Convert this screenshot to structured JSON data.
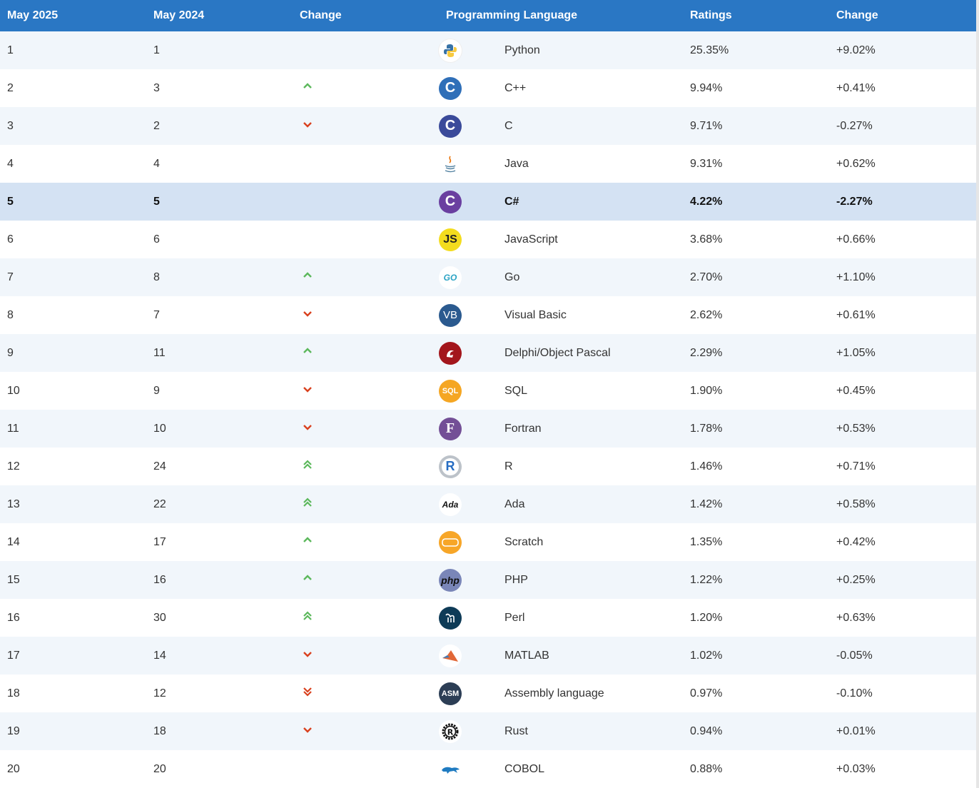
{
  "header": {
    "col1": "May 2025",
    "col2": "May 2024",
    "col3": "Change",
    "col4": "Programming Language",
    "col5": "Ratings",
    "col6": "Change"
  },
  "rows": [
    {
      "now": "1",
      "prev": "1",
      "trend": "none",
      "icon": "python-logo-icon",
      "lang": "Python",
      "rating": "25.35%",
      "change": "+9.02%"
    },
    {
      "now": "2",
      "prev": "3",
      "trend": "up",
      "icon": "cpp-logo-icon",
      "lang": "C++",
      "rating": "9.94%",
      "change": "+0.41%"
    },
    {
      "now": "3",
      "prev": "2",
      "trend": "down",
      "icon": "c-logo-icon",
      "lang": "C",
      "rating": "9.71%",
      "change": "-0.27%"
    },
    {
      "now": "4",
      "prev": "4",
      "trend": "none",
      "icon": "java-logo-icon",
      "lang": "Java",
      "rating": "9.31%",
      "change": "+0.62%"
    },
    {
      "now": "5",
      "prev": "5",
      "trend": "none",
      "icon": "csharp-logo-icon",
      "lang": "C#",
      "rating": "4.22%",
      "change": "-2.27%",
      "highlight": true
    },
    {
      "now": "6",
      "prev": "6",
      "trend": "none",
      "icon": "javascript-logo-icon",
      "lang": "JavaScript",
      "rating": "3.68%",
      "change": "+0.66%"
    },
    {
      "now": "7",
      "prev": "8",
      "trend": "up",
      "icon": "go-logo-icon",
      "lang": "Go",
      "rating": "2.70%",
      "change": "+1.10%"
    },
    {
      "now": "8",
      "prev": "7",
      "trend": "down",
      "icon": "visual-basic-logo-icon",
      "lang": "Visual Basic",
      "rating": "2.62%",
      "change": "+0.61%"
    },
    {
      "now": "9",
      "prev": "11",
      "trend": "up",
      "icon": "delphi-logo-icon",
      "lang": "Delphi/Object Pascal",
      "rating": "2.29%",
      "change": "+1.05%"
    },
    {
      "now": "10",
      "prev": "9",
      "trend": "down",
      "icon": "sql-logo-icon",
      "lang": "SQL",
      "rating": "1.90%",
      "change": "+0.45%"
    },
    {
      "now": "11",
      "prev": "10",
      "trend": "down",
      "icon": "fortran-logo-icon",
      "lang": "Fortran",
      "rating": "1.78%",
      "change": "+0.53%"
    },
    {
      "now": "12",
      "prev": "24",
      "trend": "up2",
      "icon": "r-logo-icon",
      "lang": "R",
      "rating": "1.46%",
      "change": "+0.71%"
    },
    {
      "now": "13",
      "prev": "22",
      "trend": "up2",
      "icon": "ada-logo-icon",
      "lang": "Ada",
      "rating": "1.42%",
      "change": "+0.58%"
    },
    {
      "now": "14",
      "prev": "17",
      "trend": "up",
      "icon": "scratch-logo-icon",
      "lang": "Scratch",
      "rating": "1.35%",
      "change": "+0.42%"
    },
    {
      "now": "15",
      "prev": "16",
      "trend": "up",
      "icon": "php-logo-icon",
      "lang": "PHP",
      "rating": "1.22%",
      "change": "+0.25%"
    },
    {
      "now": "16",
      "prev": "30",
      "trend": "up2",
      "icon": "perl-logo-icon",
      "lang": "Perl",
      "rating": "1.20%",
      "change": "+0.63%"
    },
    {
      "now": "17",
      "prev": "14",
      "trend": "down",
      "icon": "matlab-logo-icon",
      "lang": "MATLAB",
      "rating": "1.02%",
      "change": "-0.05%"
    },
    {
      "now": "18",
      "prev": "12",
      "trend": "down2",
      "icon": "assembly-logo-icon",
      "lang": "Assembly language",
      "rating": "0.97%",
      "change": "-0.10%"
    },
    {
      "now": "19",
      "prev": "18",
      "trend": "down",
      "icon": "rust-logo-icon",
      "lang": "Rust",
      "rating": "0.94%",
      "change": "+0.01%"
    },
    {
      "now": "20",
      "prev": "20",
      "trend": "none",
      "icon": "cobol-logo-icon",
      "lang": "COBOL",
      "rating": "0.88%",
      "change": "+0.03%"
    }
  ],
  "logos": {
    "js": "JS",
    "vb": "VB",
    "sql": "SQL",
    "fortran": "F",
    "ada": "Ada",
    "php": "php",
    "asm": "ASM",
    "go": "GO",
    "r": "R",
    "c": "C",
    "cpp": "C",
    "csharp": "C"
  },
  "colors": {
    "header_bg": "#2a77c4",
    "up_arrow": "#5cb85c",
    "down_arrow": "#d9411e",
    "highlight_row": "#d4e2f3"
  }
}
